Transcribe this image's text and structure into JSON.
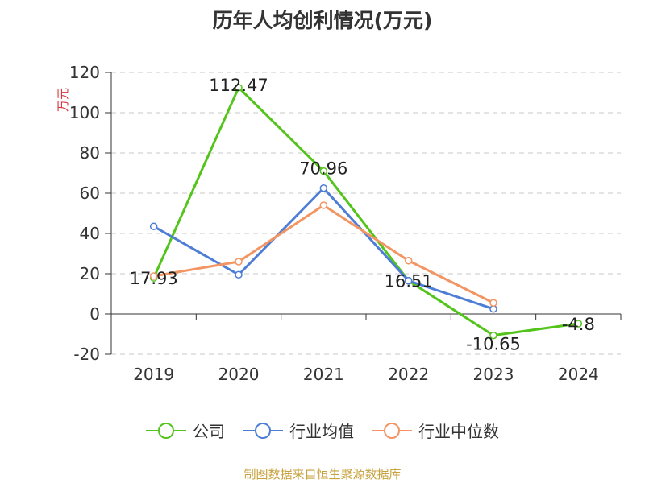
{
  "colors": {
    "company": "#52c41a",
    "industry_avg": "#4e7dd6",
    "industry_median": "#f39563",
    "unit_label": "#d9363e",
    "footer": "#c7a13c"
  },
  "chart_data": {
    "type": "line",
    "title": "历年人均创利情况(万元)",
    "ylabel": "万元",
    "xlabel": "",
    "categories": [
      "2019",
      "2020",
      "2021",
      "2022",
      "2023",
      "2024"
    ],
    "ylim": [
      -20,
      120
    ],
    "yticks": [
      -20,
      0,
      20,
      40,
      60,
      80,
      100,
      120
    ],
    "grid": true,
    "legend_position": "bottom",
    "series": [
      {
        "name": "公司",
        "values": [
          17.93,
          112.47,
          70.96,
          16.51,
          -10.65,
          -4.8
        ],
        "labels": [
          "17.93",
          "112.47",
          "70.96",
          "16.51",
          "-10.65",
          "-4.8"
        ]
      },
      {
        "name": "行业均值",
        "values": [
          43.5,
          19.5,
          62.5,
          16.5,
          2.5,
          null
        ]
      },
      {
        "name": "行业中位数",
        "values": [
          18.8,
          26.0,
          54.0,
          26.5,
          5.5,
          null
        ]
      }
    ]
  },
  "footer": {
    "source": "制图数据来自恒生聚源数据库"
  }
}
